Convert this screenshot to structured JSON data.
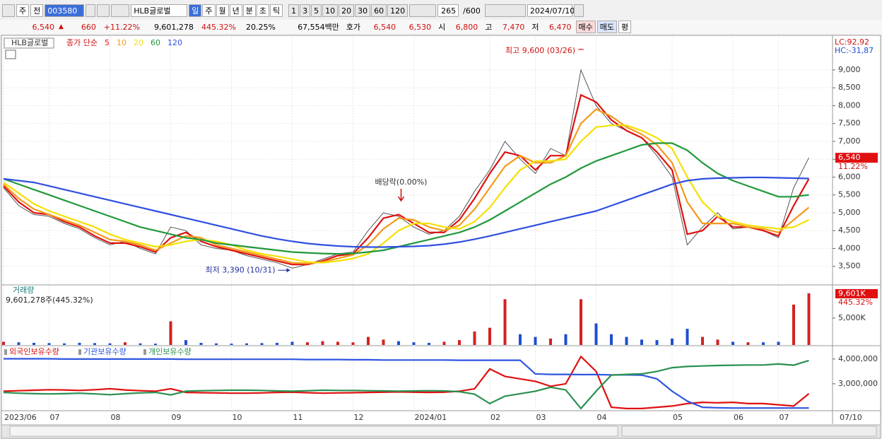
{
  "toolbar": {
    "market": "주",
    "prev": "전",
    "code": "003580",
    "name": "HLB글로벌",
    "periods": [
      "일",
      "주",
      "월",
      "년",
      "분",
      "초",
      "틱"
    ],
    "intervals": [
      "1",
      "3",
      "5",
      "10",
      "20",
      "30",
      "60",
      "120"
    ],
    "count": "265",
    "max": "/600",
    "date": "2024/07/10"
  },
  "quote": {
    "price": "6,540",
    "change": "660",
    "change_pct": "+11.22%",
    "volume": "9,601,278",
    "volume_ratio": "445.32%",
    "turnover": "20.25%",
    "amount": "67,554백만",
    "ask_label": "호가",
    "ask": "6,540",
    "bid": "6,530",
    "open_label": "시",
    "open": "6,800",
    "high_label": "고",
    "high": "7,470",
    "low_label": "저",
    "low": "6,470",
    "buy": "매수",
    "sell": "매도",
    "avg": "평"
  },
  "chart_data": [
    {
      "type": "line",
      "name_label": "HLB글로벌",
      "legend_label": "종가 단순",
      "corner_labels": [
        "LC:92,92",
        "HC:-31,87"
      ],
      "last_price_label": "6,540",
      "last_change_label": "11.22%",
      "close": [
        5700,
        5200,
        4950,
        4900,
        4700,
        4550,
        4300,
        4100,
        4200,
        4000,
        3850,
        4600,
        4500,
        4100,
        4000,
        3950,
        3800,
        3700,
        3600,
        3450,
        3550,
        3700,
        3850,
        3900,
        4500,
        5000,
        4900,
        4600,
        4400,
        4500,
        4900,
        5600,
        6200,
        7000,
        6500,
        6100,
        6800,
        6600,
        9000,
        8000,
        7500,
        7300,
        7100,
        6600,
        6000,
        4100,
        4600,
        5000,
        4550,
        4600,
        4500,
        4300,
        5700,
        6540
      ],
      "series": [
        {
          "name": "5",
          "color": "#e01010",
          "values": [
            5750,
            5300,
            5000,
            4950,
            4750,
            4600,
            4350,
            4150,
            4150,
            4050,
            3900,
            4300,
            4450,
            4200,
            4050,
            3950,
            3850,
            3750,
            3650,
            3550,
            3550,
            3650,
            3800,
            3850,
            4300,
            4850,
            4950,
            4700,
            4450,
            4450,
            4800,
            5400,
            6100,
            6700,
            6600,
            6200,
            6600,
            6600,
            8300,
            8100,
            7600,
            7300,
            7100,
            6700,
            6200,
            4400,
            4500,
            4900,
            4600,
            4600,
            4500,
            4350,
            5200,
            5950
          ]
        },
        {
          "name": "10",
          "color": "#f59a1a",
          "values": [
            5800,
            5400,
            5100,
            4950,
            4800,
            4650,
            4450,
            4250,
            4200,
            4100,
            3950,
            4150,
            4350,
            4300,
            4100,
            4000,
            3900,
            3800,
            3700,
            3600,
            3580,
            3620,
            3720,
            3820,
            4100,
            4550,
            4850,
            4800,
            4600,
            4500,
            4650,
            5100,
            5700,
            6300,
            6600,
            6400,
            6400,
            6600,
            7500,
            7900,
            7700,
            7400,
            7200,
            6900,
            6400,
            5300,
            4700,
            4700,
            4700,
            4600,
            4550,
            4450,
            4800,
            5150
          ]
        },
        {
          "name": "20",
          "color": "#f5e000",
          "values": [
            5850,
            5550,
            5250,
            5050,
            4900,
            4750,
            4600,
            4400,
            4250,
            4150,
            4050,
            4100,
            4200,
            4250,
            4200,
            4100,
            3950,
            3850,
            3780,
            3700,
            3620,
            3600,
            3650,
            3720,
            3850,
            4150,
            4500,
            4700,
            4700,
            4600,
            4550,
            4750,
            5150,
            5700,
            6200,
            6450,
            6450,
            6500,
            7000,
            7400,
            7450,
            7450,
            7300,
            7100,
            6800,
            6000,
            5300,
            4900,
            4750,
            4650,
            4600,
            4550,
            4600,
            4800
          ]
        },
        {
          "name": "60",
          "color": "#21983a",
          "values": [
            5950,
            5800,
            5650,
            5500,
            5350,
            5200,
            5050,
            4900,
            4750,
            4600,
            4500,
            4400,
            4300,
            4250,
            4150,
            4100,
            4050,
            4000,
            3950,
            3900,
            3880,
            3860,
            3850,
            3860,
            3900,
            3950,
            4050,
            4150,
            4250,
            4350,
            4450,
            4600,
            4800,
            5050,
            5300,
            5550,
            5800,
            6000,
            6250,
            6450,
            6600,
            6750,
            6900,
            6950,
            6950,
            6750,
            6400,
            6100,
            5900,
            5750,
            5600,
            5450,
            5450,
            5500
          ]
        },
        {
          "name": "120",
          "color": "#2f4fe0",
          "values": [
            5950,
            5900,
            5850,
            5750,
            5650,
            5550,
            5450,
            5350,
            5250,
            5150,
            5050,
            4950,
            4850,
            4750,
            4650,
            4550,
            4450,
            4350,
            4270,
            4200,
            4140,
            4100,
            4070,
            4050,
            4040,
            4040,
            4050,
            4060,
            4080,
            4120,
            4180,
            4260,
            4350,
            4450,
            4550,
            4650,
            4750,
            4850,
            4950,
            5050,
            5200,
            5350,
            5500,
            5650,
            5800,
            5900,
            5950,
            5970,
            5980,
            5990,
            5990,
            5980,
            5970,
            5960
          ]
        }
      ],
      "ylim": [
        3000,
        9930
      ],
      "yticks": [
        {
          "value": 3500,
          "label": "3,500"
        },
        {
          "value": 4000,
          "label": "4,000"
        },
        {
          "value": 4500,
          "label": "4,500"
        },
        {
          "value": 5000,
          "label": "5,000"
        },
        {
          "value": 5500,
          "label": "5,500"
        },
        {
          "value": 6000,
          "label": "6,000"
        },
        {
          "value": 6500,
          "label": "6,500"
        },
        {
          "value": 7000,
          "label": "7,000"
        },
        {
          "value": 7500,
          "label": "7,500"
        },
        {
          "value": 8000,
          "label": "8,000"
        },
        {
          "value": 8500,
          "label": "8,500"
        },
        {
          "value": 9000,
          "label": "9,000"
        }
      ],
      "grid": true,
      "annotations": {
        "high": {
          "text": "최고 9,600 (03/26)",
          "value": 9600
        },
        "low": {
          "text": "최저 3,390 (10/31)",
          "value": 3390
        },
        "dividend": {
          "text": "배당락(0.00%)"
        }
      }
    },
    {
      "type": "bar",
      "title": "거래량",
      "subtitle": "9,601,278주(445.32%)",
      "last_value_label": "9,601K",
      "last_ratio_label": "445.32%",
      "values": [
        600000,
        500000,
        400000,
        350000,
        300000,
        400000,
        350000,
        300000,
        500000,
        300000,
        250000,
        4400000,
        900000,
        400000,
        300000,
        250000,
        300000,
        350000,
        400000,
        600000,
        500000,
        700000,
        600000,
        500000,
        1500000,
        1000000,
        700000,
        500000,
        400000,
        600000,
        900000,
        2500000,
        3200000,
        8500000,
        2000000,
        1500000,
        1200000,
        2000000,
        8500000,
        4000000,
        2000000,
        1500000,
        1000000,
        900000,
        1200000,
        3000000,
        1500000,
        1000000,
        600000,
        500000,
        500000,
        600000,
        7500000,
        9601278
      ],
      "up_color": "#d42020",
      "down_color": "#1f4fd0",
      "ylim": [
        0,
        10900000
      ],
      "yticks": [
        {
          "value": 5000000,
          "label": "5,000K"
        }
      ]
    },
    {
      "type": "line",
      "last_date": "07/10",
      "categories": [
        "2023/06",
        null,
        null,
        "07",
        null,
        null,
        null,
        "08",
        null,
        null,
        null,
        "09",
        null,
        null,
        null,
        "10",
        null,
        null,
        null,
        "11",
        null,
        null,
        null,
        "12",
        null,
        null,
        null,
        "2024/01",
        null,
        null,
        null,
        null,
        "02",
        null,
        null,
        "03",
        null,
        null,
        null,
        "04",
        null,
        null,
        null,
        null,
        "05",
        null,
        null,
        null,
        "06",
        null,
        null,
        "07",
        null,
        null
      ],
      "series": [
        {
          "name": "외국인보유수량",
          "color": "#e01010",
          "values": [
            2700000,
            2720000,
            2740000,
            2760000,
            2750000,
            2730000,
            2760000,
            2800000,
            2750000,
            2720000,
            2700000,
            2800000,
            2650000,
            2640000,
            2630000,
            2620000,
            2620000,
            2630000,
            2650000,
            2660000,
            2640000,
            2620000,
            2630000,
            2640000,
            2650000,
            2660000,
            2670000,
            2660000,
            2650000,
            2660000,
            2700000,
            2800000,
            3600000,
            3300000,
            3200000,
            3100000,
            2900000,
            3000000,
            4100000,
            3500000,
            2050000,
            2000000,
            2000000,
            2050000,
            2100000,
            2200000,
            2250000,
            2230000,
            2250000,
            2200000,
            2200000,
            2150000,
            2100000,
            2600000
          ]
        },
        {
          "name": "기관보유수량",
          "color": "#2f55e0",
          "values": [
            4010000,
            4010000,
            4010000,
            4010000,
            4000000,
            4000000,
            4000000,
            4000000,
            4000000,
            4000000,
            4000000,
            4000000,
            3990000,
            3990000,
            3990000,
            3990000,
            3990000,
            3990000,
            3990000,
            3990000,
            3980000,
            3980000,
            3980000,
            3970000,
            3970000,
            3960000,
            3960000,
            3960000,
            3960000,
            3960000,
            3950000,
            3950000,
            3950000,
            3950000,
            3950000,
            3400000,
            3380000,
            3380000,
            3370000,
            3370000,
            3360000,
            3360000,
            3350000,
            3200000,
            2700000,
            2300000,
            2050000,
            2030000,
            2020000,
            2020000,
            2020000,
            2020000,
            2020000,
            2020000
          ]
        },
        {
          "name": "개인보유수량",
          "color": "#2a9050",
          "values": [
            2650000,
            2620000,
            2600000,
            2590000,
            2600000,
            2620000,
            2590000,
            2560000,
            2600000,
            2630000,
            2650000,
            2550000,
            2700000,
            2720000,
            2730000,
            2740000,
            2740000,
            2730000,
            2710000,
            2700000,
            2720000,
            2740000,
            2730000,
            2730000,
            2720000,
            2710000,
            2700000,
            2710000,
            2720000,
            2710000,
            2680000,
            2580000,
            2200000,
            2500000,
            2600000,
            2700000,
            2860000,
            2750000,
            2000000,
            2700000,
            3350000,
            3380000,
            3400000,
            3500000,
            3650000,
            3700000,
            3720000,
            3740000,
            3750000,
            3760000,
            3760000,
            3800000,
            3750000,
            3940000
          ]
        }
      ],
      "ylim": [
        1940000,
        4510000
      ],
      "yticks": [
        {
          "value": 3000000,
          "label": "3,000,000"
        },
        {
          "value": 4000000,
          "label": "4,000,000"
        }
      ]
    }
  ]
}
